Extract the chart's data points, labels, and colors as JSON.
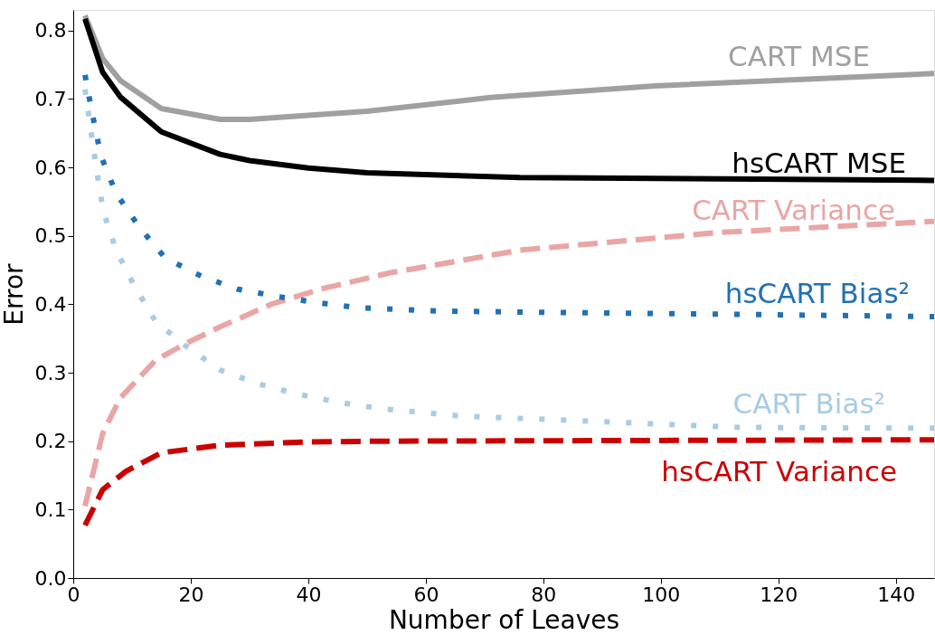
{
  "chart_data": {
    "type": "line",
    "xlabel": "Number of Leaves",
    "ylabel": "Error",
    "xlim": [
      0,
      146.5
    ],
    "ylim": [
      0,
      0.83
    ],
    "xticks": [
      0,
      20,
      40,
      60,
      80,
      100,
      120,
      140
    ],
    "yticks": [
      {
        "value": 0,
        "label": "0.0"
      },
      {
        "value": 0.1,
        "label": "0.1"
      },
      {
        "value": 0.2,
        "label": "0.2"
      },
      {
        "value": 0.3,
        "label": "0.3"
      },
      {
        "value": 0.4,
        "label": "0.4"
      },
      {
        "value": 0.5,
        "label": "0.5"
      },
      {
        "value": 0.6,
        "label": "0.6"
      },
      {
        "value": 0.7,
        "label": "0.7"
      },
      {
        "value": 0.8,
        "label": "0.8"
      }
    ],
    "marker": "none",
    "series": [
      {
        "name": "CART MSE",
        "color": "#a0a0a0",
        "line_style": "solid",
        "x": [
          2,
          5,
          8,
          15,
          25,
          30,
          50,
          71,
          99,
          146.5
        ],
        "values": [
          0.822,
          0.759,
          0.727,
          0.686,
          0.67,
          0.67,
          0.682,
          0.702,
          0.719,
          0.737
        ]
      },
      {
        "name": "hsCART MSE",
        "color": "#000000",
        "line_style": "solid",
        "x": [
          2,
          5,
          8,
          15,
          25,
          30,
          40,
          50,
          76,
          146.5
        ],
        "values": [
          0.817,
          0.739,
          0.703,
          0.652,
          0.619,
          0.61,
          0.599,
          0.592,
          0.585,
          0.581
        ]
      },
      {
        "name": "CART Variance",
        "color": "#eaa5a5",
        "line_style": "dashed",
        "x": [
          2,
          5,
          8,
          14,
          19,
          25,
          34,
          43,
          54,
          76,
          110,
          146.5
        ],
        "values": [
          0.105,
          0.211,
          0.263,
          0.318,
          0.342,
          0.367,
          0.401,
          0.424,
          0.446,
          0.479,
          0.505,
          0.521
        ]
      },
      {
        "name": "hsCART Bias²",
        "color": "#2171b5",
        "line_style": "dotted",
        "x": [
          2,
          3.3,
          4.7,
          7.3,
          11.2,
          15.6,
          21.8,
          28,
          35,
          41.8,
          48.5,
          62,
          146.5
        ],
        "values": [
          0.735,
          0.676,
          0.617,
          0.562,
          0.513,
          0.468,
          0.441,
          0.422,
          0.411,
          0.402,
          0.395,
          0.39,
          0.382
        ]
      },
      {
        "name": "CART Bias²",
        "color": "#a9cce3",
        "line_style": "dotted",
        "x": [
          2,
          3,
          4,
          5.1,
          7.3,
          10.4,
          14,
          19.3,
          25,
          31.4,
          38,
          45,
          51.8,
          65.5,
          113.7,
          146.5
        ],
        "values": [
          0.714,
          0.654,
          0.595,
          0.536,
          0.479,
          0.427,
          0.375,
          0.338,
          0.304,
          0.284,
          0.269,
          0.257,
          0.248,
          0.237,
          0.22,
          0.219
        ]
      },
      {
        "name": "hsCART Variance",
        "color": "#cc0000",
        "line_style": "dashed",
        "x": [
          2,
          5,
          9,
          15,
          25,
          40,
          54,
          146.5
        ],
        "values": [
          0.077,
          0.129,
          0.156,
          0.183,
          0.194,
          0.199,
          0.2,
          0.202
        ]
      }
    ]
  }
}
